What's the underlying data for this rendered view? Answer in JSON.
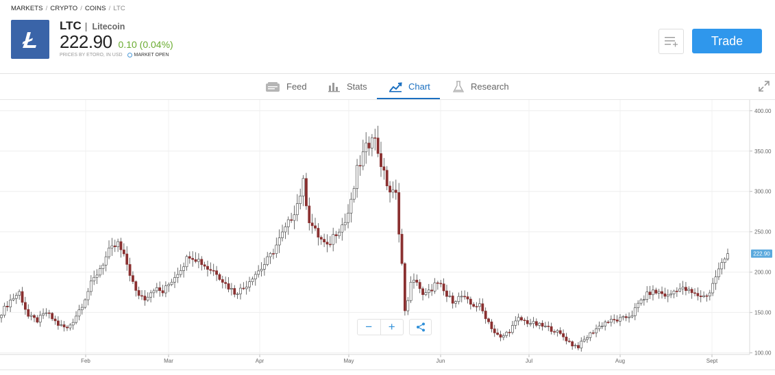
{
  "breadcrumb": [
    "MARKETS",
    "CRYPTO",
    "COINS",
    "LTC"
  ],
  "instrument": {
    "ticker": "LTC",
    "separator": "|",
    "name": "Litecoin",
    "price": "222.90",
    "change": "0.10 (0.04%)",
    "prices_note": "PRICES BY ETORO, IN USD",
    "market_status": "MARKET OPEN",
    "logo_icon": "litecoin-logo-icon"
  },
  "actions": {
    "watchlist_icon": "add-to-watchlist-icon",
    "trade_label": "Trade"
  },
  "tabs": [
    {
      "label": "Feed",
      "icon": "feed-icon",
      "active": false
    },
    {
      "label": "Stats",
      "icon": "stats-icon",
      "active": false
    },
    {
      "label": "Chart",
      "icon": "chart-icon",
      "active": true
    },
    {
      "label": "Research",
      "icon": "flask-icon",
      "active": false
    }
  ],
  "controls": {
    "zoom_out": "−",
    "zoom_in": "+",
    "share_icon": "share-icon",
    "fullscreen_icon": "fullscreen-icon"
  },
  "colors": {
    "accent": "#1a6fc0",
    "trade_button": "#2f97ec",
    "change_positive": "#6aac30",
    "logo_bg": "#3a64a8",
    "candle_up": "#3f7a3f",
    "candle_down": "#8a3030",
    "price_tag": "#5aa9dd"
  },
  "chart_data": {
    "type": "candlestick",
    "title": "",
    "x_tick_labels": [
      "Feb",
      "Mar",
      "Apr",
      "May",
      "Jun",
      "Jul",
      "Aug",
      "Sept"
    ],
    "y_tick_labels": [
      "400.00",
      "350.00",
      "300.00",
      "250.00",
      "200.00",
      "150.00",
      "100.00"
    ],
    "ylim": [
      98,
      410
    ],
    "last_price_label": "222.90",
    "grid": true,
    "anchors": [
      [
        0,
        150
      ],
      [
        3,
        165
      ],
      [
        6,
        175
      ],
      [
        9,
        145
      ],
      [
        12,
        140
      ],
      [
        15,
        150
      ],
      [
        19,
        135
      ],
      [
        22,
        130
      ],
      [
        24,
        140
      ],
      [
        27,
        160
      ],
      [
        30,
        185
      ],
      [
        33,
        205
      ],
      [
        36,
        225
      ],
      [
        39,
        235
      ],
      [
        42,
        210
      ],
      [
        45,
        175
      ],
      [
        48,
        168
      ],
      [
        51,
        180
      ],
      [
        54,
        175
      ],
      [
        57,
        190
      ],
      [
        60,
        205
      ],
      [
        63,
        222
      ],
      [
        66,
        215
      ],
      [
        69,
        205
      ],
      [
        72,
        200
      ],
      [
        75,
        185
      ],
      [
        78,
        175
      ],
      [
        81,
        180
      ],
      [
        84,
        195
      ],
      [
        87,
        205
      ],
      [
        90,
        220
      ],
      [
        93,
        240
      ],
      [
        96,
        260
      ],
      [
        99,
        285
      ],
      [
        101,
        310
      ],
      [
        103,
        265
      ],
      [
        105,
        250
      ],
      [
        107,
        240
      ],
      [
        109,
        230
      ],
      [
        111,
        245
      ],
      [
        113,
        255
      ],
      [
        115,
        262
      ],
      [
        117,
        285
      ],
      [
        119,
        325
      ],
      [
        121,
        345
      ],
      [
        123,
        360
      ],
      [
        124,
        375
      ],
      [
        126,
        350
      ],
      [
        128,
        320
      ],
      [
        130,
        300
      ],
      [
        132,
        295
      ],
      [
        134,
        210
      ],
      [
        135,
        150
      ],
      [
        137,
        185
      ],
      [
        139,
        190
      ],
      [
        141,
        170
      ],
      [
        143,
        175
      ],
      [
        145,
        185
      ],
      [
        147,
        182
      ],
      [
        149,
        170
      ],
      [
        151,
        165
      ],
      [
        154,
        170
      ],
      [
        157,
        160
      ],
      [
        160,
        158
      ],
      [
        162,
        145
      ],
      [
        165,
        125
      ],
      [
        167,
        118
      ],
      [
        170,
        128
      ],
      [
        173,
        142
      ],
      [
        176,
        138
      ],
      [
        179,
        135
      ],
      [
        182,
        132
      ],
      [
        185,
        128
      ],
      [
        188,
        120
      ],
      [
        191,
        110
      ],
      [
        193,
        108
      ],
      [
        196,
        120
      ],
      [
        199,
        130
      ],
      [
        202,
        138
      ],
      [
        205,
        140
      ],
      [
        208,
        142
      ],
      [
        211,
        148
      ],
      [
        214,
        165
      ],
      [
        217,
        175
      ],
      [
        220,
        175
      ],
      [
        223,
        170
      ],
      [
        226,
        180
      ],
      [
        229,
        178
      ],
      [
        232,
        172
      ],
      [
        235,
        170
      ],
      [
        237,
        175
      ],
      [
        239,
        195
      ],
      [
        241,
        210
      ],
      [
        243,
        222.9
      ]
    ]
  }
}
